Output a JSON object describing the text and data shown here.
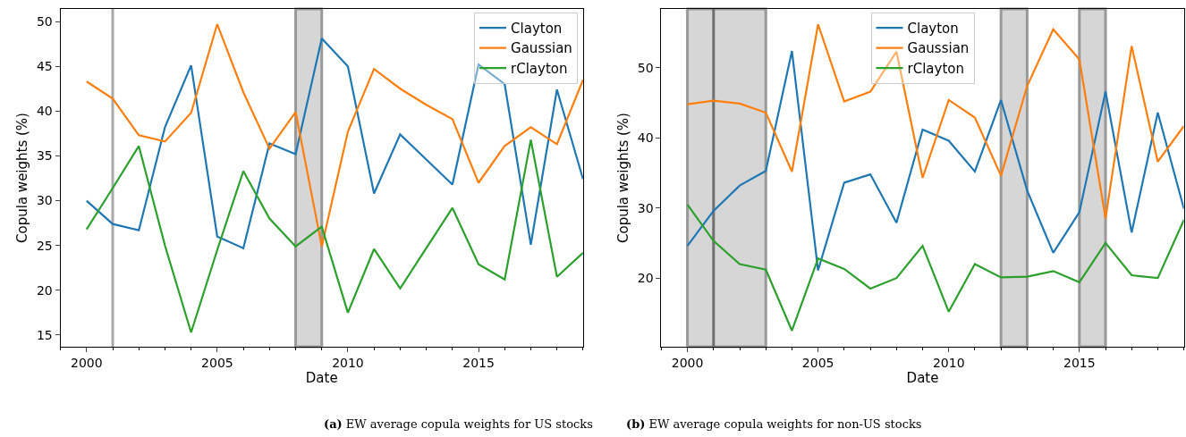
{
  "chart_data": [
    {
      "type": "line",
      "xlabel": "Date",
      "ylabel": "Copula weights (%)",
      "x": [
        2000,
        2001,
        2002,
        2003,
        2004,
        2005,
        2006,
        2007,
        2008,
        2009,
        2010,
        2011,
        2012,
        2013,
        2014,
        2015,
        2016,
        2017,
        2018,
        2019
      ],
      "xlim": [
        1999,
        2019
      ],
      "xticks": [
        2000,
        2005,
        2010,
        2015
      ],
      "ylim": [
        13.7,
        51.4
      ],
      "yticks": [
        15,
        20,
        25,
        30,
        35,
        40,
        45,
        50
      ],
      "grid": false,
      "legend": "top right",
      "series": [
        {
          "name": "Clayton",
          "color": "#1f77b4",
          "values": [
            30.0,
            27.4,
            26.7,
            38.2,
            45.1,
            26.0,
            24.7,
            36.4,
            35.2,
            48.1,
            45.0,
            30.8,
            37.4,
            34.6,
            31.8,
            45.2,
            43.0,
            25.1,
            42.4,
            32.4
          ]
        },
        {
          "name": "Gaussian",
          "color": "#ff7f0e",
          "values": [
            43.3,
            41.4,
            37.3,
            36.6,
            39.8,
            49.7,
            42.1,
            35.8,
            39.9,
            24.9,
            37.7,
            44.7,
            42.5,
            40.7,
            39.1,
            32.0,
            36.1,
            38.2,
            36.3,
            43.5
          ]
        },
        {
          "name": "rClayton",
          "color": "#2ca02c",
          "values": [
            26.8,
            31.4,
            36.1,
            25.0,
            15.3,
            24.5,
            33.3,
            28.0,
            24.9,
            27.1,
            17.5,
            24.6,
            20.2,
            24.7,
            29.2,
            22.9,
            21.2,
            36.8,
            21.5,
            24.2
          ]
        }
      ],
      "ref_lines": [
        {
          "axis": "x",
          "value": 2001,
          "color": "#a9a9a9"
        }
      ],
      "bands": [
        {
          "axis": "x",
          "from": 2008,
          "to": 2009,
          "color": "#d6d6d6"
        }
      ],
      "annotations": [
        "(a) EW average copula weights for US stocks"
      ]
    },
    {
      "type": "line",
      "xlabel": "Date",
      "ylabel": "Copula weights (%)",
      "x": [
        2000,
        2001,
        2002,
        2003,
        2004,
        2005,
        2006,
        2007,
        2008,
        2009,
        2010,
        2011,
        2012,
        2013,
        2014,
        2015,
        2016,
        2017,
        2018,
        2019
      ],
      "xlim": [
        1999,
        2019
      ],
      "xticks": [
        2000,
        2005,
        2010,
        2015
      ],
      "ylim": [
        10.2,
        58.4
      ],
      "yticks": [
        20,
        30,
        40,
        50
      ],
      "grid": false,
      "legend": "top",
      "series": [
        {
          "name": "Clayton",
          "color": "#1f77b4",
          "values": [
            24.6,
            29.6,
            33.2,
            35.3,
            52.4,
            21.1,
            33.6,
            34.8,
            27.9,
            41.2,
            39.6,
            35.2,
            45.4,
            32.5,
            23.6,
            29.4,
            46.6,
            26.5,
            43.6,
            29.9
          ]
        },
        {
          "name": "Gaussian",
          "color": "#ff7f0e",
          "values": [
            44.8,
            45.3,
            44.9,
            43.6,
            35.2,
            56.2,
            45.2,
            46.6,
            52.3,
            34.3,
            45.4,
            42.9,
            34.6,
            47.4,
            55.5,
            51.2,
            28.5,
            53.1,
            36.6,
            41.7
          ]
        },
        {
          "name": "rClayton",
          "color": "#2ca02c",
          "values": [
            30.5,
            25.3,
            22.0,
            21.2,
            12.5,
            22.8,
            21.3,
            18.5,
            20.0,
            24.6,
            15.2,
            22.0,
            20.1,
            20.2,
            21.0,
            19.4,
            25.0,
            20.4,
            20.0,
            28.3
          ]
        }
      ],
      "ref_lines": [
        {
          "axis": "x",
          "value": 2001,
          "color": "#707070"
        }
      ],
      "bands": [
        {
          "axis": "x",
          "from": 2000,
          "to": 2003,
          "color": "#d6d6d6"
        },
        {
          "axis": "x",
          "from": 2012,
          "to": 2013,
          "color": "#d6d6d6"
        },
        {
          "axis": "x",
          "from": 2015,
          "to": 2016,
          "color": "#d6d6d6"
        }
      ],
      "annotations": [
        "(b) EW average copula weights for non-US stocks"
      ]
    }
  ]
}
